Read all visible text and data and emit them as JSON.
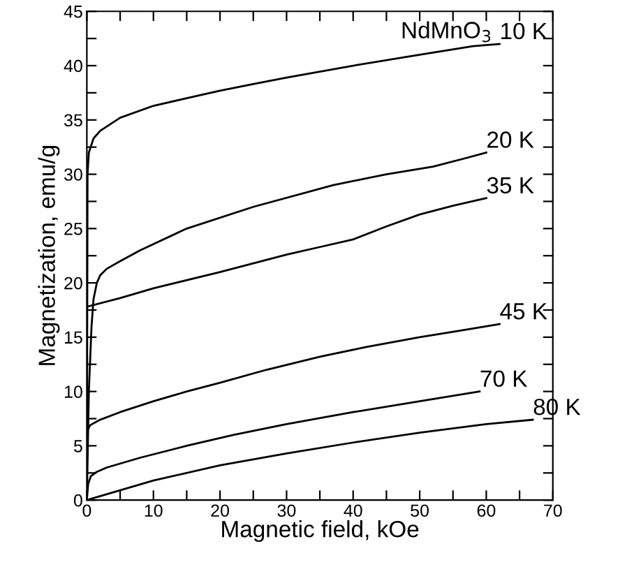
{
  "chart_data": {
    "type": "line",
    "xlabel": "Magnetic field, kOe",
    "ylabel": "Magnetization, emu/g",
    "xlim": [
      0,
      70
    ],
    "ylim": [
      0,
      45
    ],
    "xticks": [
      0,
      {
        "value": 5,
        "label": null
      },
      10,
      {
        "value": 15,
        "label": null
      },
      20,
      {
        "value": 25,
        "label": null
      },
      30,
      {
        "value": 35,
        "label": null
      },
      40,
      {
        "value": 45,
        "label": null
      },
      50,
      {
        "value": 55,
        "label": null
      },
      60,
      {
        "value": 65,
        "label": null
      },
      70
    ],
    "yticks": [
      0,
      {
        "value": 2.5,
        "label": null
      },
      5,
      {
        "value": 7.5,
        "label": null
      },
      10,
      {
        "value": 12.5,
        "label": null
      },
      15,
      {
        "value": 17.5,
        "label": null
      },
      20,
      {
        "value": 22.5,
        "label": null
      },
      25,
      {
        "value": 27.5,
        "label": null
      },
      30,
      {
        "value": 32.5,
        "label": null
      },
      35,
      {
        "value": 37.5,
        "label": null
      },
      40,
      {
        "value": 42.5,
        "label": null
      },
      45
    ],
    "grid": false,
    "legend": false,
    "marker": "none",
    "line_style": "solid",
    "series": [
      {
        "color": "#000000",
        "x": [
          0,
          0.1,
          0.3,
          1,
          2,
          5,
          10,
          15,
          20,
          25,
          30,
          40,
          50,
          58,
          62
        ],
        "values": [
          0,
          30,
          32,
          33.3,
          34,
          35.2,
          36.3,
          37,
          37.7,
          38.3,
          38.9,
          40,
          41,
          41.8,
          42
        ]
      },
      {
        "color": "#000000",
        "x": [
          0,
          0.3,
          0.7,
          1,
          1.5,
          2,
          3,
          5,
          8,
          15,
          25,
          37,
          45,
          52,
          57,
          60
        ],
        "values": [
          0,
          10,
          16,
          18.5,
          20,
          20.7,
          21.3,
          22,
          23,
          25,
          27,
          29,
          30,
          30.7,
          31.5,
          32
        ]
      },
      {
        "color": "#000000",
        "x": [
          0,
          5,
          10,
          20,
          30,
          35,
          40,
          45,
          50,
          55,
          60
        ],
        "values": [
          17.8,
          18.6,
          19.5,
          21,
          22.6,
          23.3,
          24,
          25.2,
          26.3,
          27.1,
          27.8
        ]
      },
      {
        "color": "#000000",
        "x": [
          0,
          0.5,
          2,
          5,
          10,
          15,
          20,
          27,
          35,
          42,
          50,
          56,
          62
        ],
        "values": [
          6.3,
          6.9,
          7.4,
          8.1,
          9.1,
          10,
          10.8,
          12,
          13.2,
          14.1,
          15,
          15.6,
          16.2
        ]
      },
      {
        "color": "#000000",
        "x": [
          0,
          0.2,
          0.6,
          1.5,
          3,
          8,
          15,
          22,
          30,
          40,
          50,
          59
        ],
        "values": [
          0,
          1.5,
          2.2,
          2.6,
          3,
          3.9,
          5,
          6,
          7,
          8.1,
          9.1,
          10
        ]
      },
      {
        "color": "#000000",
        "x": [
          0,
          10,
          20,
          30,
          40,
          50,
          60,
          67
        ],
        "values": [
          0,
          1.8,
          3.2,
          4.3,
          5.3,
          6.2,
          7,
          7.4
        ]
      }
    ],
    "annotations": [
      {
        "text": "10 K",
        "x": 62,
        "y": 42
      },
      {
        "text": "20 K",
        "x": 60,
        "y": 32
      },
      {
        "text": "35 K",
        "x": 60,
        "y": 27.8
      },
      {
        "text": "45 K",
        "x": 62,
        "y": 16.2
      },
      {
        "text": "70 K",
        "x": 59,
        "y": 10
      },
      {
        "text": "80 K",
        "x": 67,
        "y": 7.4
      },
      "NdMnO$_{3}$"
    ]
  }
}
